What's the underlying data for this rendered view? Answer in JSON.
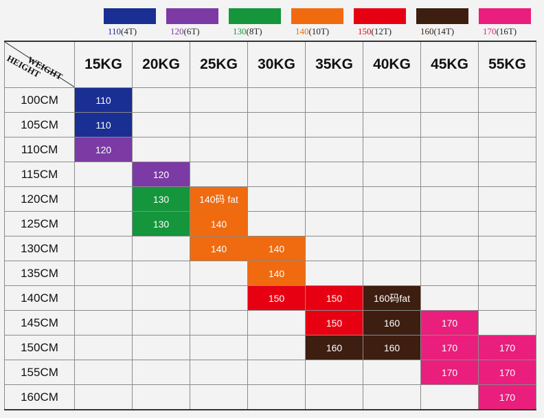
{
  "legend": [
    {
      "label": "110",
      "suffix": "(4T)",
      "color": "#1a2f93"
    },
    {
      "label": "120",
      "suffix": "(6T)",
      "color": "#7b3aa4"
    },
    {
      "label": "130",
      "suffix": "(8T)",
      "color": "#16963c"
    },
    {
      "label": "140",
      "suffix": "(10T)",
      "color": "#f06a0f"
    },
    {
      "label": "150",
      "suffix": "(12T)",
      "color": "#e60012"
    },
    {
      "label": "160",
      "suffix": "(14T)",
      "color": "#3e1e10"
    },
    {
      "label": "170",
      "suffix": "(16T)",
      "color": "#ea1f7d"
    }
  ],
  "corner": {
    "weight_label": "WEIGHT",
    "height_label": "HEIGHT"
  },
  "columns": [
    "15KG",
    "20KG",
    "25KG",
    "30KG",
    "35KG",
    "40KG",
    "45KG",
    "55KG"
  ],
  "rows": [
    {
      "height": "100CM",
      "cells": [
        "110",
        "",
        "",
        "",
        "",
        "",
        "",
        ""
      ]
    },
    {
      "height": "105CM",
      "cells": [
        "110",
        "",
        "",
        "",
        "",
        "",
        "",
        ""
      ]
    },
    {
      "height": "110CM",
      "cells": [
        "120",
        "",
        "",
        "",
        "",
        "",
        "",
        ""
      ]
    },
    {
      "height": "115CM",
      "cells": [
        "",
        "120",
        "",
        "",
        "",
        "",
        "",
        ""
      ]
    },
    {
      "height": "120CM",
      "cells": [
        "",
        "130",
        "140码 fat",
        "",
        "",
        "",
        "",
        ""
      ]
    },
    {
      "height": "125CM",
      "cells": [
        "",
        "130",
        "140",
        "",
        "",
        "",
        "",
        ""
      ]
    },
    {
      "height": "130CM",
      "cells": [
        "",
        "",
        "140",
        "140",
        "",
        "",
        "",
        ""
      ]
    },
    {
      "height": "135CM",
      "cells": [
        "",
        "",
        "",
        "140",
        "",
        "",
        "",
        ""
      ]
    },
    {
      "height": "140CM",
      "cells": [
        "",
        "",
        "",
        "150",
        "150",
        "160码fat",
        "",
        ""
      ]
    },
    {
      "height": "145CM",
      "cells": [
        "",
        "",
        "",
        "",
        "150",
        "160",
        "170",
        ""
      ]
    },
    {
      "height": "150CM",
      "cells": [
        "",
        "",
        "",
        "",
        "160",
        "160",
        "170",
        "170"
      ]
    },
    {
      "height": "155CM",
      "cells": [
        "",
        "",
        "",
        "",
        "",
        "",
        "170",
        "170"
      ]
    },
    {
      "height": "160CM",
      "cells": [
        "",
        "",
        "",
        "",
        "",
        "",
        "",
        "170"
      ]
    }
  ]
}
